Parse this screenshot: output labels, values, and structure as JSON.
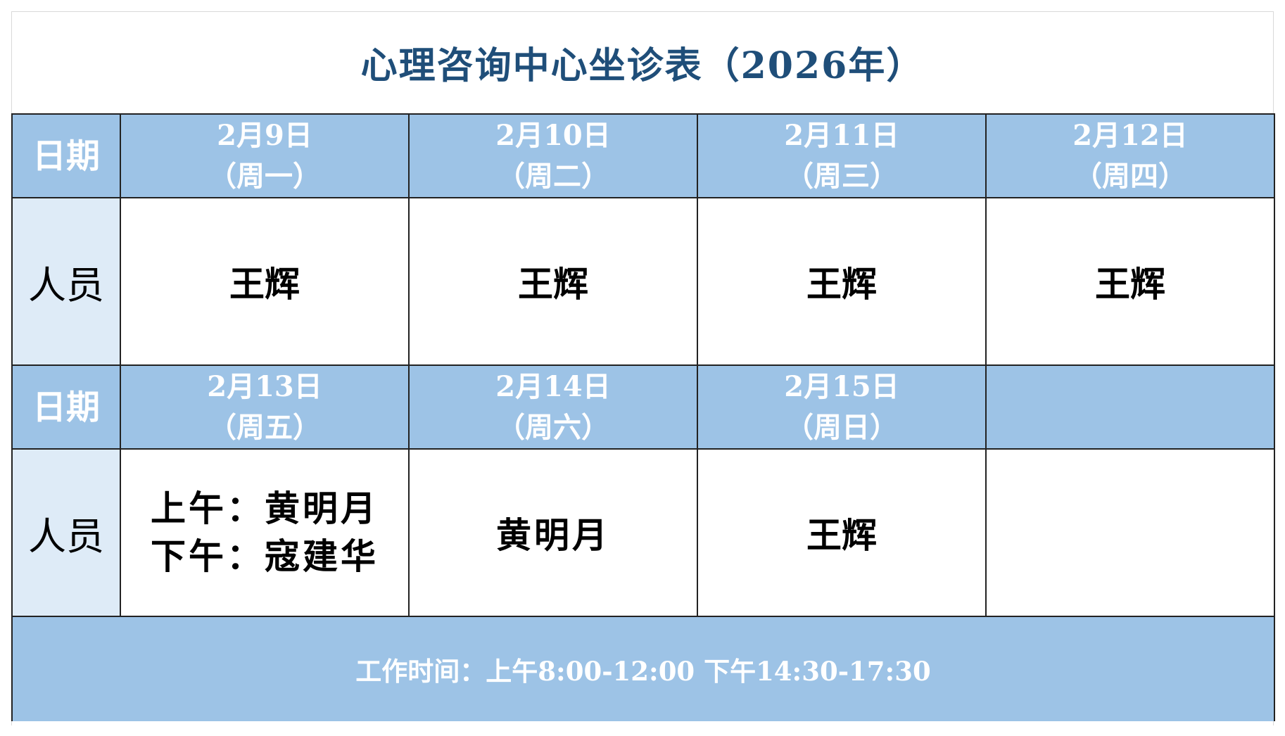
{
  "title": "心理咨询中心坐诊表（2026年）",
  "row_label_date": "日期",
  "row_label_staff": "人员",
  "week1": [
    {
      "date": "2月9日",
      "weekday": "（周一）",
      "staff": "王辉"
    },
    {
      "date": "2月10日",
      "weekday": "（周二）",
      "staff": "王辉"
    },
    {
      "date": "2月11日",
      "weekday": "（周三）",
      "staff": "王辉"
    },
    {
      "date": "2月12日",
      "weekday": "（周四）",
      "staff": "王辉"
    }
  ],
  "week2": [
    {
      "date": "2月13日",
      "weekday": "（周五）",
      "staff_am": "上午：黄明月",
      "staff_pm": "下午：寇建华"
    },
    {
      "date": "2月14日",
      "weekday": "（周六）",
      "staff": "黄明月"
    },
    {
      "date": "2月15日",
      "weekday": "（周日）",
      "staff": "王辉"
    }
  ],
  "footer": "工作时间：上午8:00-12:00 下午14:30-17:30",
  "colors": {
    "header_bg": "#9dc3e6",
    "label_bg": "#deebf7",
    "title": "#1f4e79"
  }
}
